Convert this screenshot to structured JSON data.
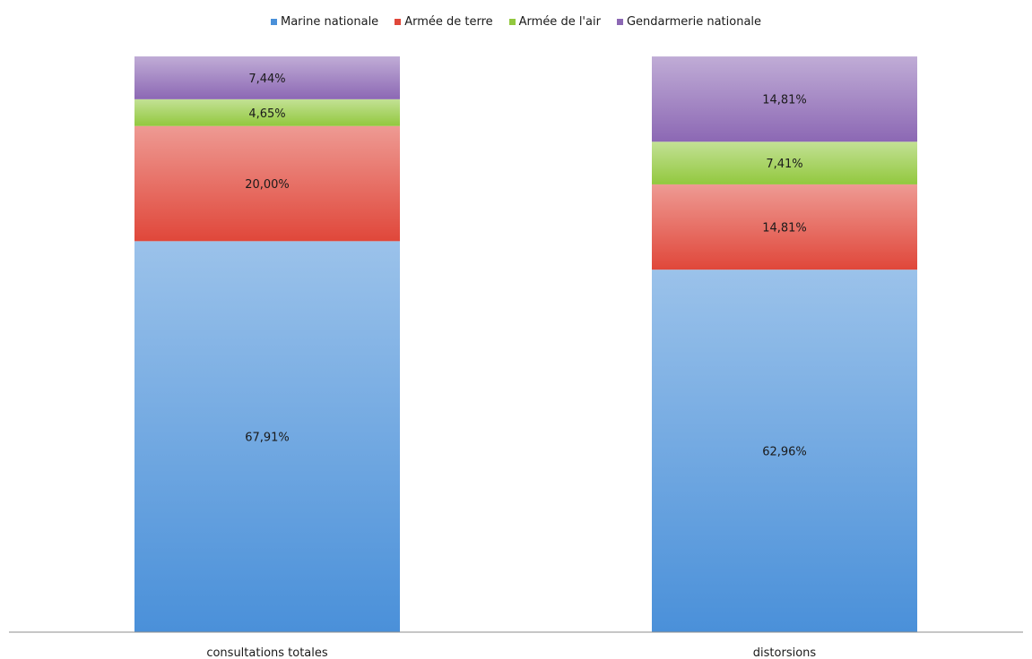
{
  "chart_data": {
    "type": "bar",
    "stacked": true,
    "normalized_to_100_percent": true,
    "legend_position": "top",
    "grid": false,
    "categories": [
      "consultations totales",
      "distorsions"
    ],
    "ylim": [
      0,
      100
    ],
    "series": [
      {
        "name": "Marine nationale",
        "color": "#4a90d9",
        "values": [
          67.91,
          62.96
        ],
        "labels": [
          "67,91%",
          "62,96%"
        ]
      },
      {
        "name": "Armée de terre",
        "color": "#e0473a",
        "values": [
          20.0,
          14.81
        ],
        "labels": [
          "20,00%",
          "14,81%"
        ]
      },
      {
        "name": "Armée de l'air",
        "color": "#92c83e",
        "values": [
          4.65,
          7.41
        ],
        "labels": [
          "4,65%",
          "7,41%"
        ]
      },
      {
        "name": "Gendarmerie nationale",
        "color": "#8c68b4",
        "values": [
          7.44,
          14.81
        ],
        "labels": [
          "7,44%",
          "14,81%"
        ]
      }
    ]
  }
}
